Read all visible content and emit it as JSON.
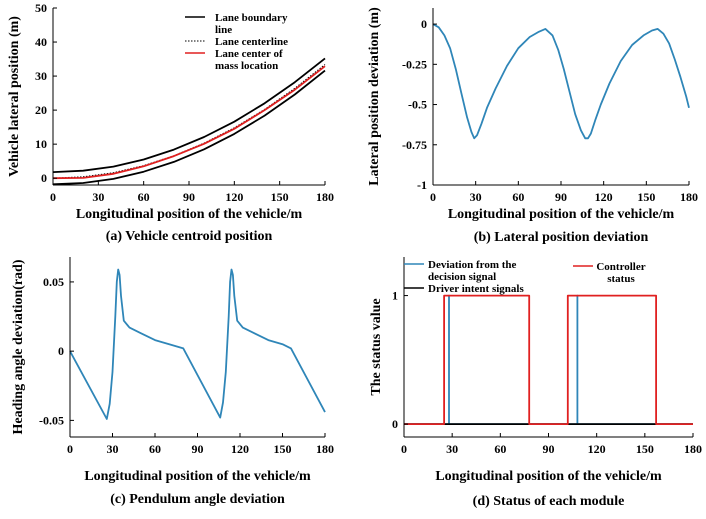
{
  "chart_data": [
    {
      "id": "a",
      "type": "line",
      "caption": "(a) Vehicle centroid position",
      "xlabel": "Longitudinal position of the vehicle/m",
      "ylabel": "Vehicle lateral position (m)",
      "xlim": [
        0,
        180
      ],
      "ylim": [
        -2,
        50
      ],
      "xticks": [
        0,
        30,
        60,
        90,
        120,
        150,
        180
      ],
      "yticks": [
        0,
        10,
        20,
        30,
        40,
        50
      ],
      "legend": {
        "placement": "top-right",
        "entries": [
          {
            "lines": [
              "Lane boundary",
              "line"
            ],
            "color": "#000000",
            "style": "solid"
          },
          {
            "lines": [
              "Lane centerline"
            ],
            "color": "#000000",
            "style": "dotted"
          },
          {
            "lines": [
              "Lane center of",
              "mass location"
            ],
            "color": "#e02020",
            "style": "solid"
          }
        ]
      },
      "series": [
        {
          "role": "boundary-upper",
          "color": "#000000",
          "style": "solid",
          "x": [
            0,
            20,
            40,
            60,
            80,
            100,
            120,
            140,
            160,
            180
          ],
          "y": [
            1.8,
            2.2,
            3.4,
            5.5,
            8.4,
            12.1,
            16.6,
            22.0,
            28.2,
            35.2
          ]
        },
        {
          "role": "boundary-lower",
          "color": "#000000",
          "style": "solid",
          "x": [
            0,
            20,
            40,
            60,
            80,
            100,
            120,
            140,
            160,
            180
          ],
          "y": [
            -1.8,
            -1.4,
            -0.2,
            1.9,
            4.8,
            8.5,
            13.0,
            18.4,
            24.6,
            31.6
          ]
        },
        {
          "role": "centerline",
          "color": "#000000",
          "style": "dotted",
          "x": [
            0,
            20,
            40,
            60,
            80,
            100,
            120,
            140,
            160,
            180
          ],
          "y": [
            0,
            0.4,
            1.6,
            3.7,
            6.6,
            10.3,
            14.8,
            20.2,
            26.4,
            33.4
          ]
        },
        {
          "role": "centroid",
          "color": "#e02020",
          "style": "solid",
          "x": [
            0,
            20,
            40,
            60,
            80,
            100,
            120,
            140,
            160,
            180
          ],
          "y": [
            0,
            0.1,
            1.3,
            3.5,
            6.5,
            10.1,
            14.5,
            20.0,
            26.0,
            32.9
          ]
        }
      ]
    },
    {
      "id": "b",
      "type": "line",
      "caption": "(b) Lateral position deviation",
      "xlabel": "Longitudinal position of the vehicle/m",
      "ylabel": "Lateral position deviation (m)",
      "xlim": [
        0,
        180
      ],
      "ylim": [
        -1,
        0.1
      ],
      "xticks": [
        0,
        30,
        60,
        90,
        120,
        150,
        180
      ],
      "yticks": [
        0,
        -0.25,
        -0.5,
        -0.75,
        -1
      ],
      "ytick_labels": [
        "0",
        "-0.25",
        "-0.5",
        "-0.75",
        "-1"
      ],
      "series": [
        {
          "color": "#2f86b8",
          "x": [
            0,
            4,
            8,
            12,
            16,
            20,
            24,
            27,
            29,
            31,
            34,
            38,
            44,
            52,
            60,
            68,
            74,
            79,
            84,
            88,
            92,
            96,
            100,
            104,
            107,
            109,
            111,
            114,
            118,
            124,
            132,
            140,
            148,
            154,
            158,
            162,
            166,
            170,
            174,
            178,
            180
          ],
          "y": [
            0,
            -0.02,
            -0.07,
            -0.15,
            -0.28,
            -0.43,
            -0.58,
            -0.67,
            -0.71,
            -0.69,
            -0.62,
            -0.52,
            -0.4,
            -0.26,
            -0.15,
            -0.08,
            -0.05,
            -0.03,
            -0.07,
            -0.16,
            -0.28,
            -0.42,
            -0.56,
            -0.66,
            -0.71,
            -0.71,
            -0.68,
            -0.6,
            -0.5,
            -0.37,
            -0.23,
            -0.13,
            -0.07,
            -0.04,
            -0.03,
            -0.06,
            -0.12,
            -0.22,
            -0.33,
            -0.45,
            -0.52
          ]
        }
      ]
    },
    {
      "id": "c",
      "type": "line",
      "caption": "(c) Pendulum angle deviation",
      "xlabel": "Longitudinal position of the vehicle/m",
      "ylabel": "Heading angle deviation(rad)",
      "xlim": [
        0,
        180
      ],
      "ylim": [
        -0.062,
        0.068
      ],
      "xticks": [
        0,
        30,
        60,
        90,
        120,
        150,
        180
      ],
      "yticks": [
        0.05,
        0,
        -0.05
      ],
      "ytick_labels": [
        "0.05",
        "0",
        "-0.05"
      ],
      "series": [
        {
          "color": "#2f86b8",
          "x": [
            0,
            26,
            28,
            30,
            32,
            33,
            34,
            35,
            36,
            38,
            42,
            50,
            60,
            70,
            80,
            106,
            108,
            110,
            112,
            113,
            114,
            115,
            116,
            118,
            122,
            130,
            140,
            150,
            156,
            180
          ],
          "y": [
            0,
            -0.049,
            -0.038,
            -0.015,
            0.025,
            0.05,
            0.059,
            0.055,
            0.04,
            0.022,
            0.017,
            0.013,
            0.008,
            0.005,
            0.002,
            -0.048,
            -0.037,
            -0.015,
            0.025,
            0.05,
            0.059,
            0.055,
            0.04,
            0.022,
            0.017,
            0.013,
            0.008,
            0.005,
            0.002,
            -0.044
          ]
        }
      ]
    },
    {
      "id": "d",
      "type": "line",
      "caption": "(d) Status of each module",
      "xlabel": "Longitudinal position of the vehicle/m",
      "ylabel": "The status value",
      "xlim": [
        0,
        180
      ],
      "ylim": [
        -0.1,
        1.3
      ],
      "xticks": [
        0,
        30,
        60,
        90,
        120,
        150,
        180
      ],
      "yticks": [
        1,
        0
      ],
      "ytick_labels": [
        "1",
        "0"
      ],
      "legend": {
        "entries": [
          {
            "lines": [
              "Deviation from the",
              "decision signal"
            ],
            "color": "#2f86b8"
          },
          {
            "lines": [
              "Driver intent signals"
            ],
            "color": "#000000"
          },
          {
            "lines": [
              "Controller",
              "status"
            ],
            "color": "#e02020"
          }
        ]
      },
      "series": [
        {
          "role": "deviation",
          "color": "#2f86b8",
          "x": [
            0,
            28,
            28,
            28,
            28,
            108,
            108,
            108,
            108,
            180
          ],
          "y": [
            0,
            0,
            1,
            1,
            0,
            0,
            1,
            1,
            0,
            0
          ]
        },
        {
          "role": "driver",
          "color": "#000000",
          "x": [
            0,
            180
          ],
          "y": [
            0,
            0
          ]
        },
        {
          "role": "controller",
          "color": "#e02020",
          "x": [
            0,
            25,
            25,
            78,
            78,
            102,
            102,
            157,
            157,
            180
          ],
          "y": [
            0,
            0,
            1,
            1,
            0,
            0,
            1,
            1,
            0,
            0
          ]
        }
      ]
    }
  ]
}
